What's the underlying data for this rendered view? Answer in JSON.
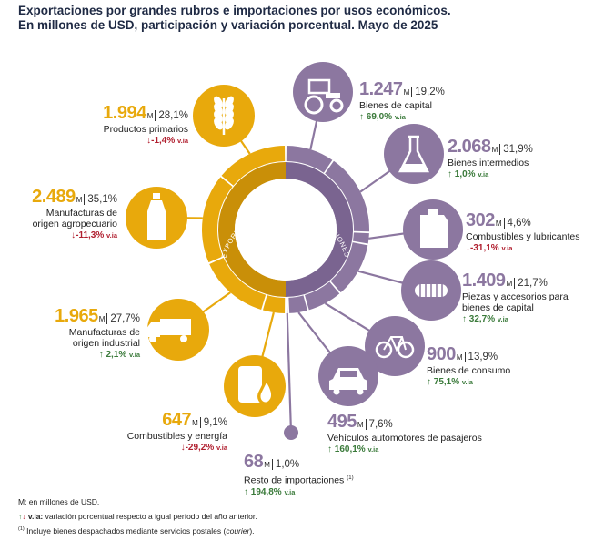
{
  "title": {
    "line1": "Exportaciones por grandes rubros e importaciones por usos económicos.",
    "line2": "En millones de USD, participación y variación porcentual. Mayo de 2025"
  },
  "colors": {
    "exports": "#e8a90c",
    "imports": "#8c77a0",
    "up": "#3a7a3a",
    "down": "#b01e2e"
  },
  "ring_labels": {
    "exports": "EXPORTACIONES",
    "imports": "IMPORTACIONES"
  },
  "unit": "M",
  "via": "v.ia",
  "chart_data": {
    "type": "pie",
    "groups": [
      {
        "name": "EXPORTACIONES",
        "items": [
          {
            "name": "Productos primarios",
            "value": "1.994",
            "share": "28,1%",
            "variation": "-1,4%",
            "direction": "down",
            "icon": "wheat-icon"
          },
          {
            "name": "Manufacturas de origen agropecuario",
            "value": "2.489",
            "share": "35,1%",
            "variation": "-11,3%",
            "direction": "down",
            "icon": "bottle-icon"
          },
          {
            "name": "Manufacturas de origen industrial",
            "value": "1.965",
            "share": "27,7%",
            "variation": "2,1%",
            "direction": "up",
            "icon": "truck-icon"
          },
          {
            "name": "Combustibles y energía",
            "value": "647",
            "share": "9,1%",
            "variation": "-29,2%",
            "direction": "down",
            "icon": "barrel-drop-icon"
          }
        ]
      },
      {
        "name": "IMPORTACIONES",
        "items": [
          {
            "name": "Bienes de capital",
            "value": "1.247",
            "share": "19,2%",
            "variation": "69,0%",
            "direction": "up",
            "icon": "tractor-icon"
          },
          {
            "name": "Bienes intermedios",
            "value": "2.068",
            "share": "31,9%",
            "variation": "1,0%",
            "direction": "up",
            "icon": "flask-icon"
          },
          {
            "name": "Combustibles y lubricantes",
            "value": "302",
            "share": "4,6%",
            "variation": "-31,1%",
            "direction": "down",
            "icon": "jerrycan-icon"
          },
          {
            "name": "Piezas y accesorios para bienes de capital",
            "value": "1.409",
            "share": "21,7%",
            "variation": "32,7%",
            "direction": "up",
            "icon": "part-icon"
          },
          {
            "name": "Bienes de consumo",
            "value": "900",
            "share": "13,9%",
            "variation": "75,1%",
            "direction": "up",
            "icon": "bicycle-icon"
          },
          {
            "name": "Vehículos automotores de pasajeros",
            "value": "495",
            "share": "7,6%",
            "variation": "160,1%",
            "direction": "up",
            "icon": "car-icon"
          },
          {
            "name": "Resto de importaciones",
            "value": "68",
            "share": "1,0%",
            "variation": "194,8%",
            "direction": "up",
            "icon": "box-icon",
            "note": "(1)"
          }
        ]
      }
    ]
  },
  "labels": {
    "e0": {
      "value": "1.994",
      "share": "28,1%",
      "name1": "Productos primarios",
      "var": "-1,4%"
    },
    "e1": {
      "value": "2.489",
      "share": "35,1%",
      "name1": "Manufacturas de",
      "name2": "origen agropecuario",
      "var": "-11,3%"
    },
    "e2": {
      "value": "1.965",
      "share": "27,7%",
      "name1": "Manufacturas de",
      "name2": "origen industrial",
      "var": "2,1%"
    },
    "e3": {
      "value": "647",
      "share": "9,1%",
      "name1": "Combustibles y energía",
      "var": "-29,2%"
    },
    "i0": {
      "value": "1.247",
      "share": "19,2%",
      "name1": "Bienes de capital",
      "var": "69,0%"
    },
    "i1": {
      "value": "2.068",
      "share": "31,9%",
      "name1": "Bienes intermedios",
      "var": "1,0%"
    },
    "i2": {
      "value": "302",
      "share": "4,6%",
      "name1": "Combustibles y lubricantes",
      "var": "-31,1%"
    },
    "i3": {
      "value": "1.409",
      "share": "21,7%",
      "name1": "Piezas y accesorios para",
      "name2": "bienes de capital",
      "var": "32,7%"
    },
    "i4": {
      "value": "900",
      "share": "13,9%",
      "name1": "Bienes de consumo",
      "var": "75,1%"
    },
    "i5": {
      "value": "495",
      "share": "7,6%",
      "name1": "Vehículos automotores de pasajeros",
      "var": "160,1%"
    },
    "i6": {
      "value": "68",
      "share": "1,0%",
      "name1": "Resto de importaciones",
      "note": "(1)",
      "var": "194,8%"
    }
  },
  "footer": {
    "line1": "M: en millones de USD.",
    "line2_key": "v.ia:",
    "line2_text": " variación porcentual respecto a igual período del año anterior.",
    "line3_mark": "(1)",
    "line3_text": " Incluye bienes despachados mediante servicios postales (",
    "line3_italic": "courier",
    "line3_end": ")."
  }
}
